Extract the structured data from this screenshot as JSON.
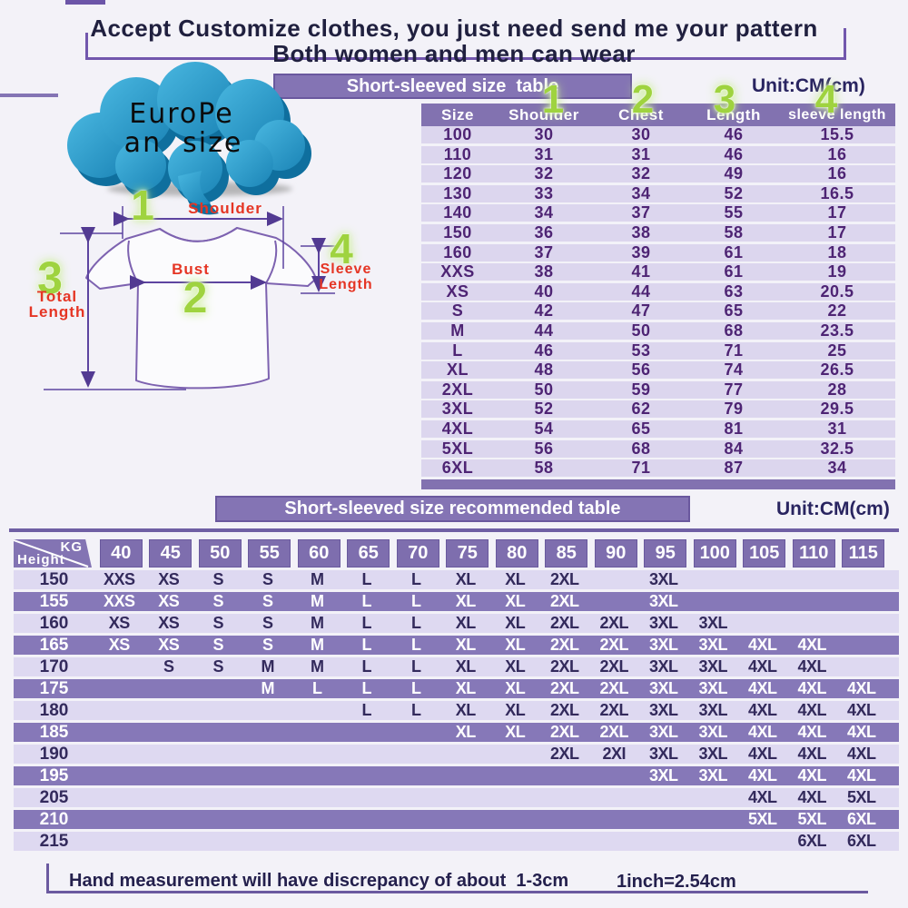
{
  "header": {
    "line1": "Accept Customize clothes, you just need send me your pattern",
    "line2": "Both women and men can wear"
  },
  "size_table": {
    "title": "Short-sleeved size  table",
    "unit": "Unit:CM(cm)",
    "col_numbers": [
      "1",
      "2",
      "3",
      "4"
    ],
    "columns": [
      "Size",
      "Shoulder",
      "Chest",
      "Length",
      "sleeve length"
    ],
    "rows": [
      [
        "100",
        "30",
        "30",
        "46",
        "15.5"
      ],
      [
        "110",
        "31",
        "31",
        "46",
        "16"
      ],
      [
        "120",
        "32",
        "32",
        "49",
        "16"
      ],
      [
        "130",
        "33",
        "34",
        "52",
        "16.5"
      ],
      [
        "140",
        "34",
        "37",
        "55",
        "17"
      ],
      [
        "150",
        "36",
        "38",
        "58",
        "17"
      ],
      [
        "160",
        "37",
        "39",
        "61",
        "18"
      ],
      [
        "XXS",
        "38",
        "41",
        "61",
        "19"
      ],
      [
        "XS",
        "40",
        "44",
        "63",
        "20.5"
      ],
      [
        "S",
        "42",
        "47",
        "65",
        "22"
      ],
      [
        "M",
        "44",
        "50",
        "68",
        "23.5"
      ],
      [
        "L",
        "46",
        "53",
        "71",
        "25"
      ],
      [
        "XL",
        "48",
        "56",
        "74",
        "26.5"
      ],
      [
        "2XL",
        "50",
        "59",
        "77",
        "28"
      ],
      [
        "3XL",
        "52",
        "62",
        "79",
        "29.5"
      ],
      [
        "4XL",
        "54",
        "65",
        "81",
        "31"
      ],
      [
        "5XL",
        "56",
        "68",
        "84",
        "32.5"
      ],
      [
        "6XL",
        "58",
        "71",
        "87",
        "34"
      ]
    ]
  },
  "diagram": {
    "bubble": {
      "line1": "EuroPe",
      "line2": "an  size"
    },
    "shoulder": {
      "num": "1",
      "label": "Shoulder"
    },
    "bust": {
      "num": "2",
      "label": "Bust"
    },
    "total": {
      "num": "3",
      "label": "Total\nLength"
    },
    "sleeve": {
      "num": "4",
      "label": "Sleeve\nLength"
    }
  },
  "recommend_table": {
    "title": "Short-sleeved size recommended table",
    "unit": "Unit:CM(cm)",
    "corner": {
      "top": "KG",
      "bottom": "Height"
    },
    "weights": [
      "40",
      "45",
      "50",
      "55",
      "60",
      "65",
      "70",
      "75",
      "80",
      "85",
      "90",
      "95",
      "100",
      "105",
      "110",
      "115"
    ],
    "rows": [
      {
        "height": "150",
        "cells": [
          "XXS",
          "XS",
          "S",
          "S",
          "M",
          "L",
          "L",
          "XL",
          "XL",
          "2XL",
          "",
          "3XL",
          "",
          "",
          "",
          ""
        ]
      },
      {
        "height": "155",
        "cells": [
          "XXS",
          "XS",
          "S",
          "S",
          "M",
          "L",
          "L",
          "XL",
          "XL",
          "2XL",
          "",
          "3XL",
          "",
          "",
          "",
          ""
        ]
      },
      {
        "height": "160",
        "cells": [
          "XS",
          "XS",
          "S",
          "S",
          "M",
          "L",
          "L",
          "XL",
          "XL",
          "2XL",
          "2XL",
          "3XL",
          "3XL",
          "",
          "",
          ""
        ]
      },
      {
        "height": "165",
        "cells": [
          "XS",
          "XS",
          "S",
          "S",
          "M",
          "L",
          "L",
          "XL",
          "XL",
          "2XL",
          "2XL",
          "3XL",
          "3XL",
          "4XL",
          "4XL",
          ""
        ]
      },
      {
        "height": "170",
        "cells": [
          "",
          "S",
          "S",
          "M",
          "M",
          "L",
          "L",
          "XL",
          "XL",
          "2XL",
          "2XL",
          "3XL",
          "3XL",
          "4XL",
          "4XL",
          ""
        ]
      },
      {
        "height": "175",
        "cells": [
          "",
          "",
          "",
          "M",
          "L",
          "L",
          "L",
          "XL",
          "XL",
          "2XL",
          "2XL",
          "3XL",
          "3XL",
          "4XL",
          "4XL",
          "4XL"
        ]
      },
      {
        "height": "180",
        "cells": [
          "",
          "",
          "",
          "",
          "",
          "L",
          "L",
          "XL",
          "XL",
          "2XL",
          "2XL",
          "3XL",
          "3XL",
          "4XL",
          "4XL",
          "4XL"
        ]
      },
      {
        "height": "185",
        "cells": [
          "",
          "",
          "",
          "",
          "",
          "",
          "",
          "XL",
          "XL",
          "2XL",
          "2XL",
          "3XL",
          "3XL",
          "4XL",
          "4XL",
          "4XL"
        ]
      },
      {
        "height": "190",
        "cells": [
          "",
          "",
          "",
          "",
          "",
          "",
          "",
          "",
          "",
          "2XL",
          "2XI",
          "3XL",
          "3XL",
          "4XL",
          "4XL",
          "4XL"
        ]
      },
      {
        "height": "195",
        "cells": [
          "",
          "",
          "",
          "",
          "",
          "",
          "",
          "",
          "",
          "",
          "",
          "3XL",
          "3XL",
          "4XL",
          "4XL",
          "4XL"
        ]
      },
      {
        "height": "205",
        "cells": [
          "",
          "",
          "",
          "",
          "",
          "",
          "",
          "",
          "",
          "",
          "",
          "",
          "",
          "4XL",
          "4XL",
          "5XL"
        ]
      },
      {
        "height": "210",
        "cells": [
          "",
          "",
          "",
          "",
          "",
          "",
          "",
          "",
          "",
          "",
          "",
          "",
          "",
          "5XL",
          "5XL",
          "6XL"
        ]
      },
      {
        "height": "215",
        "cells": [
          "",
          "",
          "",
          "",
          "",
          "",
          "",
          "",
          "",
          "",
          "",
          "",
          "",
          "",
          "6XL",
          "6XL"
        ]
      }
    ]
  },
  "footer": {
    "note": "Hand measurement will have discrepancy of about  1-3cm",
    "conversion": "1inch=2.54cm"
  }
}
